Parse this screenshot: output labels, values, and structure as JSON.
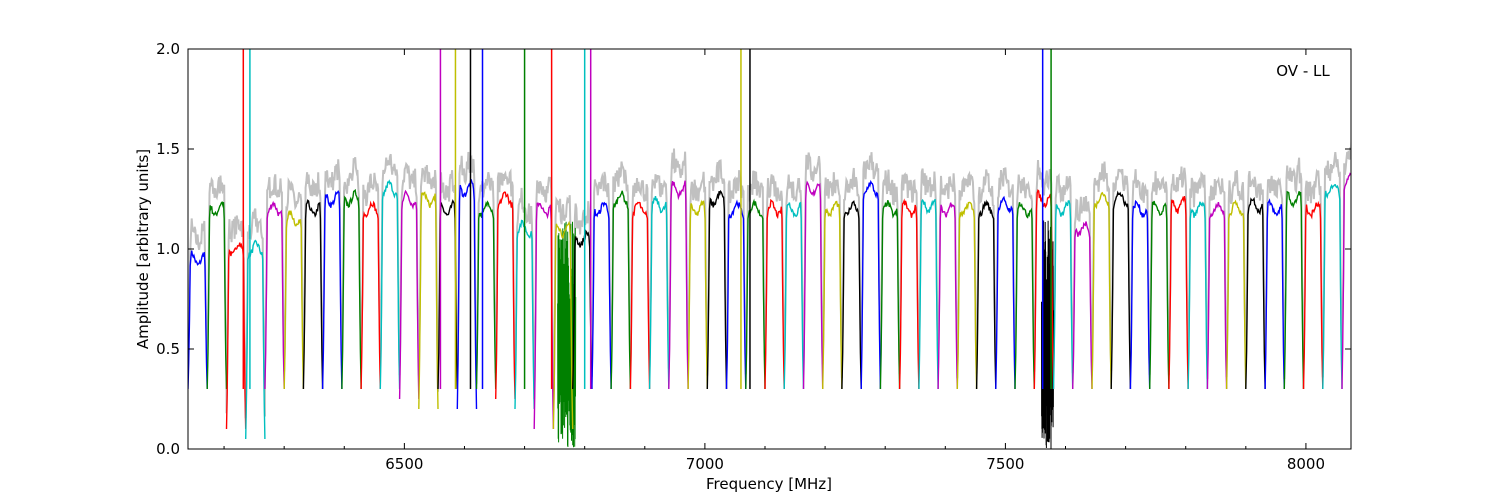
{
  "chart_data": {
    "type": "line",
    "title": "",
    "annotation": "OV - LL",
    "xlabel": "Frequency [MHz]",
    "ylabel": "Amplitude [arbitrary units]",
    "xlim": [
      6140,
      8075
    ],
    "ylim": [
      0.0,
      2.0
    ],
    "xticks": [
      6500,
      7000,
      7500,
      8000
    ],
    "xtick_labels": [
      "6500",
      "7000",
      "7500",
      "8000"
    ],
    "yticks": [
      0.0,
      0.5,
      1.0,
      1.5,
      2.0
    ],
    "ytick_labels": [
      "0.0",
      "0.5",
      "1.0",
      "1.5",
      "2.0"
    ],
    "grid": false,
    "legend": "none",
    "channel_width_mhz": 32,
    "channel_start_mhz": 6140,
    "color_cycle": [
      "#0000ff",
      "#008000",
      "#ff0000",
      "#00bfbf",
      "#bf00bf",
      "#bfbf00",
      "#000000"
    ],
    "background_color": "#c0c0c0",
    "channel_levels": [
      0.95,
      1.2,
      1.0,
      1.0,
      1.2,
      1.15,
      1.2,
      1.25,
      1.25,
      1.2,
      1.3,
      1.25,
      1.25,
      1.2,
      1.3,
      1.2,
      1.25,
      1.1,
      1.2,
      1.1,
      1.05,
      1.2,
      1.25,
      1.2,
      1.22,
      1.3,
      1.2,
      1.25,
      1.2,
      1.2,
      1.2,
      1.2,
      1.3,
      1.2,
      1.2,
      1.3,
      1.2,
      1.2,
      1.22,
      1.2,
      1.2,
      1.2,
      1.22,
      1.2,
      1.25,
      1.2,
      1.1,
      1.25,
      1.25,
      1.2,
      1.2,
      1.22,
      1.2,
      1.2,
      1.2,
      1.22,
      1.2,
      1.25,
      1.2,
      1.3,
      1.35
    ],
    "channel_dips": [
      0.3,
      0.3,
      0.1,
      0.05,
      0.3,
      0.3,
      0.3,
      0.3,
      0.3,
      0.3,
      0.3,
      0.25,
      0.2,
      0.3,
      0.2,
      0.3,
      0.25,
      0.2,
      0.1,
      0.1,
      0.3,
      0.3,
      0.3,
      0.3,
      0.3,
      0.3,
      0.3,
      0.3,
      0.3,
      0.3,
      0.3,
      0.3,
      0.3,
      0.3,
      0.3,
      0.3,
      0.3,
      0.3,
      0.3,
      0.3,
      0.3,
      0.3,
      0.3,
      0.3,
      0.3,
      0.3,
      0.3,
      0.3,
      0.3,
      0.3,
      0.3,
      0.3,
      0.3,
      0.3,
      0.3,
      0.3,
      0.3,
      0.3,
      0.3,
      0.3,
      0.3
    ],
    "spikes": [
      {
        "x": 6232,
        "y": 2.0
      },
      {
        "x": 6243,
        "y": 2.0
      },
      {
        "x": 6560,
        "y": 2.0
      },
      {
        "x": 6585,
        "y": 2.0
      },
      {
        "x": 6610,
        "y": 2.0
      },
      {
        "x": 6630,
        "y": 2.0
      },
      {
        "x": 6700,
        "y": 2.0
      },
      {
        "x": 6745,
        "y": 2.0
      },
      {
        "x": 6800,
        "y": 2.0
      },
      {
        "x": 6810,
        "y": 2.0
      },
      {
        "x": 7060,
        "y": 2.0
      },
      {
        "x": 7075,
        "y": 2.0
      },
      {
        "x": 7562,
        "y": 2.0
      },
      {
        "x": 7576,
        "y": 2.0
      }
    ],
    "noisy_regions": [
      {
        "x0": 6755,
        "x1": 6785,
        "ymin": 0.0,
        "ymax": 1.15
      },
      {
        "x0": 7560,
        "x1": 7580,
        "ymin": 0.0,
        "ymax": 1.15
      }
    ]
  }
}
